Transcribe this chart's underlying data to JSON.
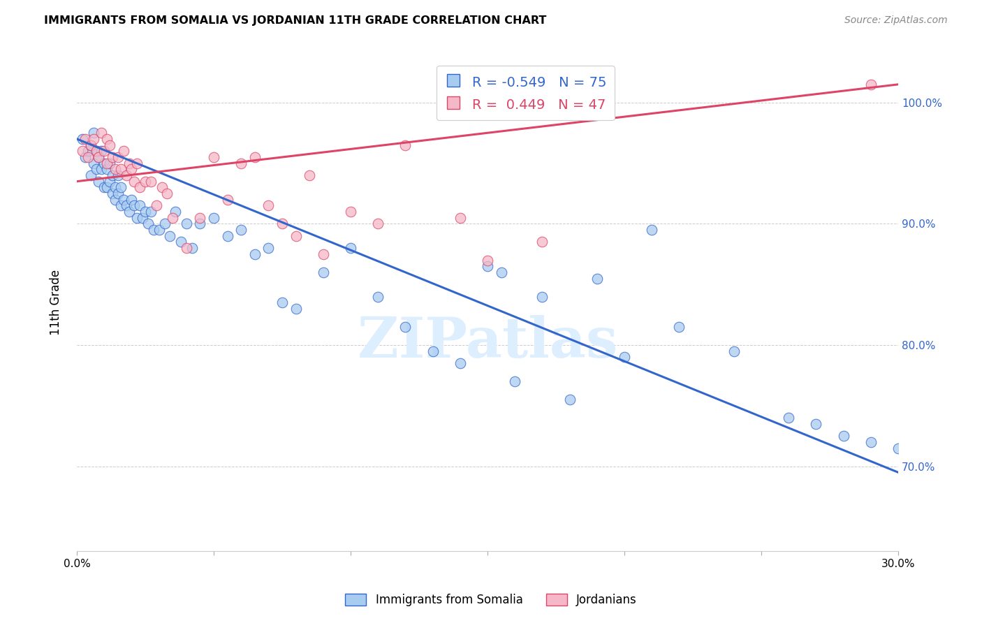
{
  "title": "IMMIGRANTS FROM SOMALIA VS JORDANIAN 11TH GRADE CORRELATION CHART",
  "source": "Source: ZipAtlas.com",
  "ylabel": "11th Grade",
  "xlim": [
    0.0,
    30.0
  ],
  "ylim": [
    63.0,
    104.0
  ],
  "yticks": [
    70.0,
    80.0,
    90.0,
    100.0
  ],
  "xticks": [
    0.0,
    5.0,
    10.0,
    15.0,
    20.0,
    25.0,
    30.0
  ],
  "blue_R": -0.549,
  "blue_N": 75,
  "pink_R": 0.449,
  "pink_N": 47,
  "blue_color": "#a8ccf0",
  "pink_color": "#f5b8c8",
  "blue_line_color": "#3366cc",
  "pink_line_color": "#dd4466",
  "watermark": "ZIPatlas",
  "watermark_color": "#ddeeff",
  "legend_label_blue": "Immigrants from Somalia",
  "legend_label_pink": "Jordanians",
  "blue_scatter_x": [
    0.2,
    0.3,
    0.4,
    0.5,
    0.5,
    0.6,
    0.6,
    0.7,
    0.7,
    0.8,
    0.8,
    0.9,
    0.9,
    1.0,
    1.0,
    1.1,
    1.1,
    1.2,
    1.2,
    1.3,
    1.3,
    1.4,
    1.4,
    1.5,
    1.5,
    1.6,
    1.6,
    1.7,
    1.8,
    1.9,
    2.0,
    2.1,
    2.2,
    2.3,
    2.4,
    2.5,
    2.6,
    2.7,
    2.8,
    3.0,
    3.2,
    3.4,
    3.6,
    3.8,
    4.0,
    4.2,
    4.5,
    5.0,
    5.5,
    6.0,
    6.5,
    7.0,
    7.5,
    8.0,
    9.0,
    10.0,
    11.0,
    12.0,
    13.0,
    14.0,
    15.0,
    16.0,
    17.0,
    18.0,
    19.0,
    20.0,
    22.0,
    24.0,
    26.0,
    27.0,
    28.0,
    29.0,
    30.0,
    15.5,
    21.0
  ],
  "blue_scatter_y": [
    97.0,
    95.5,
    96.0,
    96.5,
    94.0,
    97.5,
    95.0,
    96.0,
    94.5,
    95.5,
    93.5,
    96.0,
    94.5,
    95.0,
    93.0,
    94.5,
    93.0,
    95.0,
    93.5,
    94.0,
    92.5,
    93.0,
    92.0,
    94.0,
    92.5,
    93.0,
    91.5,
    92.0,
    91.5,
    91.0,
    92.0,
    91.5,
    90.5,
    91.5,
    90.5,
    91.0,
    90.0,
    91.0,
    89.5,
    89.5,
    90.0,
    89.0,
    91.0,
    88.5,
    90.0,
    88.0,
    90.0,
    90.5,
    89.0,
    89.5,
    87.5,
    88.0,
    83.5,
    83.0,
    86.0,
    88.0,
    84.0,
    81.5,
    79.5,
    78.5,
    86.5,
    77.0,
    84.0,
    75.5,
    85.5,
    79.0,
    81.5,
    79.5,
    74.0,
    73.5,
    72.5,
    72.0,
    71.5,
    86.0,
    89.5
  ],
  "pink_scatter_x": [
    0.2,
    0.3,
    0.4,
    0.5,
    0.6,
    0.7,
    0.8,
    0.9,
    1.0,
    1.1,
    1.1,
    1.2,
    1.3,
    1.4,
    1.5,
    1.6,
    1.7,
    1.8,
    1.9,
    2.0,
    2.1,
    2.2,
    2.3,
    2.5,
    2.7,
    2.9,
    3.1,
    3.3,
    3.5,
    4.0,
    4.5,
    5.0,
    5.5,
    6.0,
    6.5,
    7.0,
    7.5,
    8.0,
    8.5,
    9.0,
    10.0,
    11.0,
    12.0,
    14.0,
    15.0,
    17.0,
    29.0
  ],
  "pink_scatter_y": [
    96.0,
    97.0,
    95.5,
    96.5,
    97.0,
    96.0,
    95.5,
    97.5,
    96.0,
    95.0,
    97.0,
    96.5,
    95.5,
    94.5,
    95.5,
    94.5,
    96.0,
    94.0,
    95.0,
    94.5,
    93.5,
    95.0,
    93.0,
    93.5,
    93.5,
    91.5,
    93.0,
    92.5,
    90.5,
    88.0,
    90.5,
    95.5,
    92.0,
    95.0,
    95.5,
    91.5,
    90.0,
    89.0,
    94.0,
    87.5,
    91.0,
    90.0,
    96.5,
    90.5,
    87.0,
    88.5,
    101.5
  ],
  "blue_trend_x": [
    0.0,
    30.0
  ],
  "blue_trend_y": [
    97.0,
    69.5
  ],
  "pink_trend_x": [
    0.0,
    30.0
  ],
  "pink_trend_y": [
    93.5,
    101.5
  ]
}
